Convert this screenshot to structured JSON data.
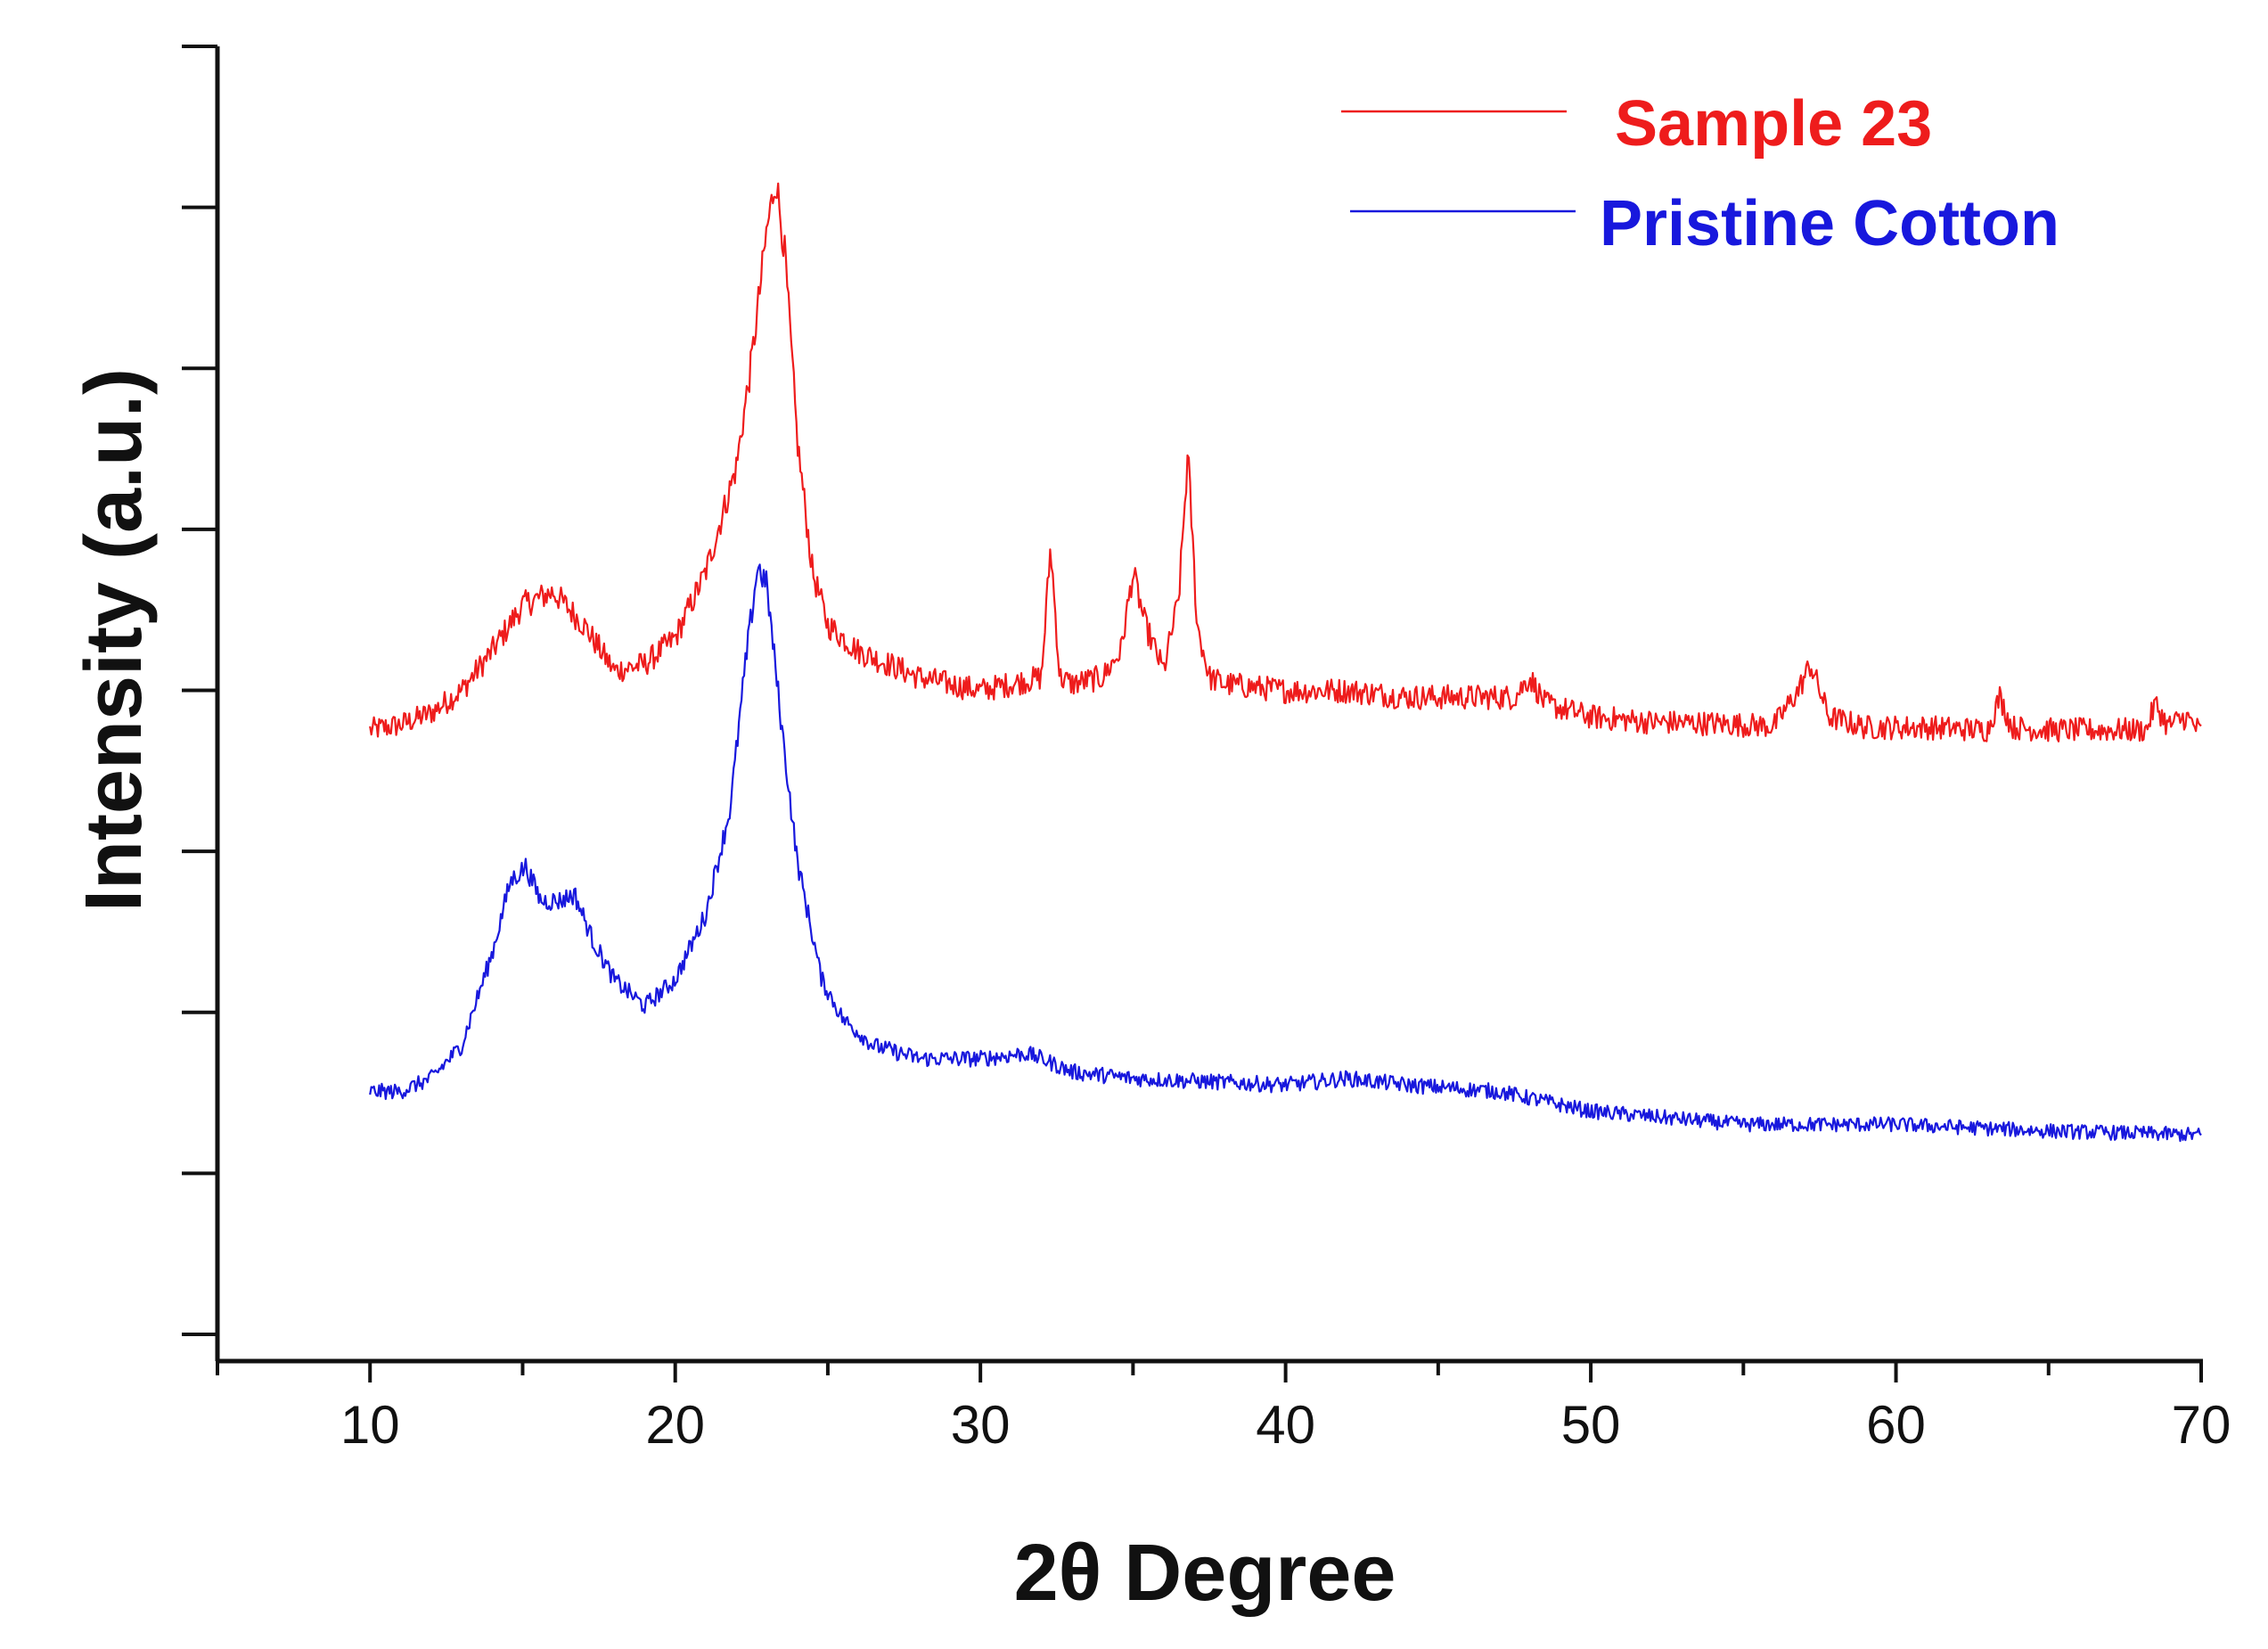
{
  "chart_data": {
    "type": "line",
    "title": "",
    "xlabel": "2θ Degree",
    "ylabel": "Intensity (a.u.)",
    "xlim": [
      5,
      70
    ],
    "ylim": [
      0,
      100
    ],
    "x_ticks": [
      10,
      20,
      30,
      40,
      50,
      60,
      70
    ],
    "x_minor_step": 5,
    "y_tick_count": 9,
    "grid": false,
    "legend_position": "top-right",
    "series": [
      {
        "name": "Sample 23",
        "color": "#ee1c1c",
        "x": [
          10,
          11,
          12,
          13,
          14,
          15,
          16,
          17,
          18,
          19,
          20,
          21,
          22,
          22.5,
          23,
          23.3,
          23.6,
          24,
          24.5,
          25,
          26,
          27,
          28,
          29,
          30,
          31,
          32,
          32.3,
          32.6,
          33,
          34,
          34.6,
          35,
          35.4,
          36,
          36.5,
          36.8,
          37.1,
          37.5,
          38,
          40,
          42,
          44,
          46,
          47.5,
          48,
          48.5,
          50,
          52,
          54,
          56,
          56.8,
          57.2,
          57.8,
          59,
          61,
          63,
          63.4,
          63.8,
          65,
          67,
          68.2,
          68.5,
          68.9,
          69.5,
          70
        ],
        "values": [
          48,
          48.4,
          49.3,
          51,
          54,
          57.5,
          58.5,
          56,
          52.5,
          53,
          55,
          60,
          68,
          76,
          86,
          90,
          84,
          70,
          60,
          56,
          54,
          53,
          52,
          51.5,
          51,
          51.5,
          52,
          62,
          52,
          51.5,
          52,
          54,
          60,
          56,
          52.5,
          58,
          69,
          56,
          52,
          51.5,
          51,
          51,
          50.5,
          50.5,
          50.5,
          52,
          50,
          49,
          48.6,
          48.5,
          48.3,
          51,
          53,
          49,
          48.2,
          48.2,
          48,
          50.5,
          48.2,
          48,
          48,
          48,
          50,
          48.3,
          49,
          47.8
        ]
      },
      {
        "name": "Pristine Cotton",
        "color": "#1818dd",
        "x": [
          10,
          11,
          12,
          13,
          14,
          14.6,
          15.1,
          15.6,
          16.2,
          16.7,
          17.3,
          18,
          19,
          20,
          21,
          21.8,
          22.3,
          22.7,
          23,
          23.5,
          24,
          24.8,
          25.5,
          26.5,
          28,
          30,
          31.5,
          32,
          33,
          35,
          40,
          42,
          44,
          47,
          50,
          55,
          60,
          65,
          70
        ],
        "values": [
          20.5,
          20.5,
          21.5,
          24,
          31,
          36.5,
          37.6,
          35,
          35,
          35.5,
          32,
          29,
          27,
          29,
          34,
          42,
          53,
          60.5,
          59,
          48,
          38,
          29,
          26,
          24,
          23,
          23,
          23.4,
          23,
          22,
          21.5,
          21,
          21.5,
          21,
          20.5,
          19,
          18,
          18,
          17.5,
          17.2
        ]
      }
    ]
  },
  "legend": {
    "items": [
      {
        "label": "Sample 23",
        "color": "#ee1c1c"
      },
      {
        "label": "Pristine Cotton",
        "color": "#1818dd"
      }
    ]
  }
}
